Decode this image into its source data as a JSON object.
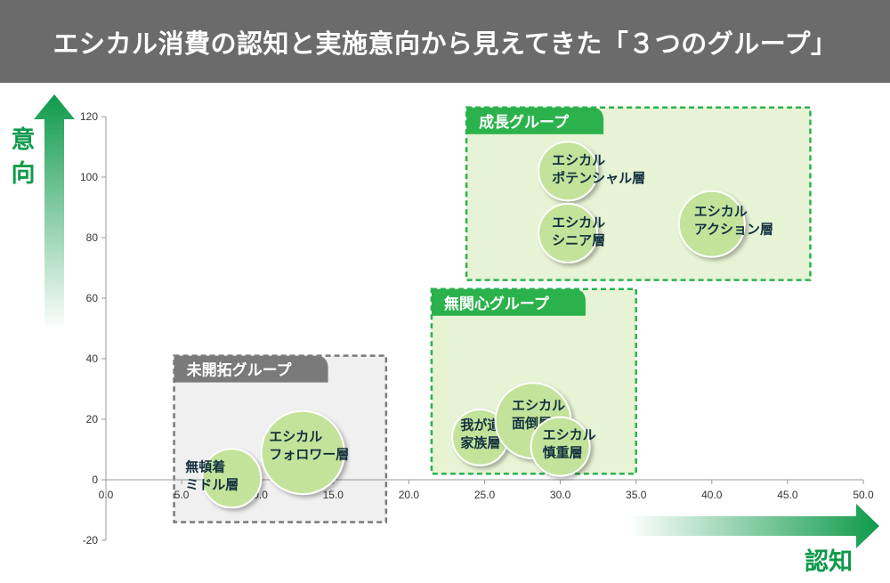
{
  "page_title": "エシカル消費の認知と実施意向から見えてきた「３つのグループ」",
  "chart_data": {
    "type": "scatter",
    "title": "",
    "xlabel": "認知",
    "ylabel": "意向",
    "xlim": [
      0,
      50
    ],
    "ylim": [
      -20,
      120
    ],
    "x_ticks": [
      "0.0",
      "5.0",
      "10.0",
      "15.0",
      "20.0",
      "25.0",
      "30.0",
      "35.0",
      "40.0",
      "45.0",
      "50.0"
    ],
    "y_ticks": [
      "-20",
      "0",
      "20",
      "40",
      "60",
      "80",
      "100",
      "120"
    ],
    "x_tick_values": [
      0,
      5,
      10,
      15,
      20,
      25,
      30,
      35,
      40,
      45,
      50
    ],
    "y_tick_values": [
      -20,
      0,
      20,
      40,
      60,
      80,
      100,
      120
    ],
    "groups": [
      {
        "name": "未開拓グループ",
        "x_range": [
          4.5,
          18.5
        ],
        "y_range": [
          -14,
          41
        ],
        "style": "gray"
      },
      {
        "name": "無関心グループ",
        "x_range": [
          21.5,
          35
        ],
        "y_range": [
          2,
          63
        ],
        "style": "green"
      },
      {
        "name": "成長グループ",
        "x_range": [
          23.8,
          46.5
        ],
        "y_range": [
          66,
          123
        ],
        "style": "green"
      }
    ],
    "points": [
      {
        "label": [
          "無頓着",
          "ミドル層"
        ],
        "x": 8.3,
        "y": 0.5,
        "size": 1.0
      },
      {
        "label": [
          "エシカル",
          "フォロワー層"
        ],
        "x": 13.0,
        "y": 9.0,
        "size": 2.0
      },
      {
        "label": [
          "我が道",
          "家族層"
        ],
        "x": 24.7,
        "y": 14.0,
        "size": 0.9
      },
      {
        "label": [
          "エシカル",
          "面倒層"
        ],
        "x": 28.2,
        "y": 19.5,
        "size": 1.65
      },
      {
        "label": [
          "エシカル",
          "慎重層"
        ],
        "x": 30.0,
        "y": 11.0,
        "size": 1.0
      },
      {
        "label": [
          "エシカル",
          "ポテンシャル層"
        ],
        "x": 30.5,
        "y": 102.0,
        "size": 1.0
      },
      {
        "label": [
          "エシカル",
          "シニア層"
        ],
        "x": 30.5,
        "y": 81.5,
        "size": 1.0
      },
      {
        "label": [
          "エシカル",
          "アクション層"
        ],
        "x": 40.0,
        "y": 84.5,
        "size": 1.25
      }
    ]
  },
  "colors": {
    "title_bg": "#6b6b6b",
    "bubble_fill": "#c3e39b",
    "bubble_stroke": "#ffffff",
    "green_group_border": "#2bb24c",
    "green_group_fill": "#e6f3d5",
    "gray_group_border": "#7a7a7a",
    "gray_group_fill": "#f0f0f0",
    "arrow_green": "#0e9a4a"
  }
}
